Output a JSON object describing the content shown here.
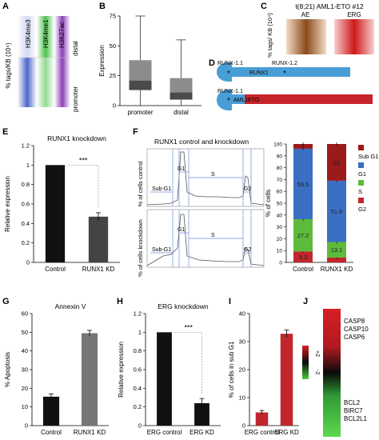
{
  "panel_labels": [
    "A",
    "B",
    "C",
    "D",
    "E",
    "F",
    "G",
    "H",
    "I",
    "J"
  ],
  "A": {
    "ylabel": "% tags/KB (10⁴)",
    "tracks": [
      "H3K4me3",
      "H3K4me1",
      "H3K27ac"
    ],
    "regions": [
      "distal",
      "promoter"
    ]
  },
  "B": {
    "ylabel": "Expression"
  },
  "C": {
    "title": "t(8;21) AML1-ETO #12",
    "ylabel": "% tags/ KB (10⁴)",
    "columns": [
      "AE",
      "ERG"
    ]
  },
  "D": {
    "top_labels": [
      "RUNX-1.1",
      "RUNX-1.2",
      "RUNX1"
    ],
    "bottom_labels": [
      "RUNX-1.1",
      "AML1",
      "ETO"
    ]
  },
  "F_cellcycle": {
    "title": "RUNX1 control and knockdown",
    "ylabel_top": "% of cells control",
    "ylabel_bottom": "% of cells knockdown",
    "gates": [
      "Sub-G1",
      "G1",
      "S",
      "G2"
    ]
  },
  "J": {
    "up_genes": [
      "CASP8",
      "CASP10",
      "CASP6"
    ],
    "down_genes": [
      "BCL2",
      "BIRC7",
      "BCL2L1"
    ],
    "scale": [
      "+2",
      "-2"
    ]
  },
  "chart_data": [
    {
      "id": "B",
      "type": "box",
      "categories": [
        "promoter",
        "distal"
      ],
      "boxes": [
        {
          "whisker_low": 0,
          "q1": 13,
          "median": 21,
          "q3": 38,
          "whisker_high": 75
        },
        {
          "whisker_low": 0,
          "q1": 5,
          "median": 11,
          "q3": 23,
          "whisker_high": 55
        }
      ],
      "ylabel": "Expression",
      "ylim": [
        0,
        75
      ],
      "yticks": [
        0,
        25,
        50,
        75
      ]
    },
    {
      "id": "E",
      "type": "bar",
      "title": "RUNX1 knockdown",
      "categories": [
        "Control",
        "RUNX1 KD"
      ],
      "values": [
        1.0,
        0.47
      ],
      "errors": [
        0.0,
        0.04
      ],
      "colors": [
        "#111111",
        "#444444"
      ],
      "ylabel": "Relative expression",
      "ylim": [
        0,
        1.2
      ],
      "yticks": [
        0,
        0.2,
        0.4,
        0.6,
        0.8,
        1,
        1.2
      ],
      "significance": "***"
    },
    {
      "id": "F",
      "type": "stacked_bar",
      "categories": [
        "Control",
        "RUNX1 KD"
      ],
      "series": [
        {
          "name": "G2",
          "color": "#c0262c",
          "values": [
            9.3,
            4.1
          ]
        },
        {
          "name": "S",
          "color": "#5dbb3b",
          "values": [
            27.2,
            13.1
          ]
        },
        {
          "name": "G1",
          "color": "#3a6fc4",
          "values": [
            59.5,
            51.8
          ]
        },
        {
          "name": "Sub G1",
          "color": "#9b1a1a",
          "values": [
            4.0,
            31
          ]
        }
      ],
      "segment_labels": [
        [
          "9.3",
          "27.2",
          "59.5",
          "4"
        ],
        [
          "",
          "13.1",
          "51.8",
          "31"
        ]
      ],
      "ylabel": "% of cells",
      "ylim": [
        0,
        100
      ],
      "yticks": [
        0,
        10,
        20,
        30,
        40,
        50,
        60,
        70,
        80,
        90,
        100
      ]
    },
    {
      "id": "G",
      "type": "bar",
      "title": "Annexin V",
      "categories": [
        "Control",
        "RUNX1 KD"
      ],
      "values": [
        15.5,
        49.5
      ],
      "errors": [
        1.5,
        1.5
      ],
      "colors": [
        "#111111",
        "#777777"
      ],
      "ylabel": "% Apoptosis",
      "ylim": [
        0,
        60
      ],
      "yticks": [
        0,
        10,
        20,
        30,
        40,
        50,
        60
      ]
    },
    {
      "id": "H",
      "type": "bar",
      "title": "ERG knockdown",
      "categories": [
        "ERG control",
        "ERG KD"
      ],
      "values": [
        1.0,
        0.24
      ],
      "errors": [
        0.0,
        0.05
      ],
      "colors": [
        "#111111",
        "#111111"
      ],
      "ylabel": "Relative expression",
      "ylim": [
        0,
        1.2
      ],
      "yticks": [
        0,
        0.2,
        0.4,
        0.6,
        0.8,
        1,
        1.2
      ],
      "significance": "***"
    },
    {
      "id": "I",
      "type": "bar",
      "categories": [
        "ERG control",
        "ERG KD"
      ],
      "values": [
        4.7,
        32.8
      ],
      "errors": [
        0.7,
        1.3
      ],
      "colors": [
        "#c0262c",
        "#c0262c"
      ],
      "ylabel": "% of cells in sub G1",
      "ylim": [
        0,
        40
      ],
      "yticks": [
        0,
        10,
        20,
        30,
        40
      ]
    }
  ]
}
